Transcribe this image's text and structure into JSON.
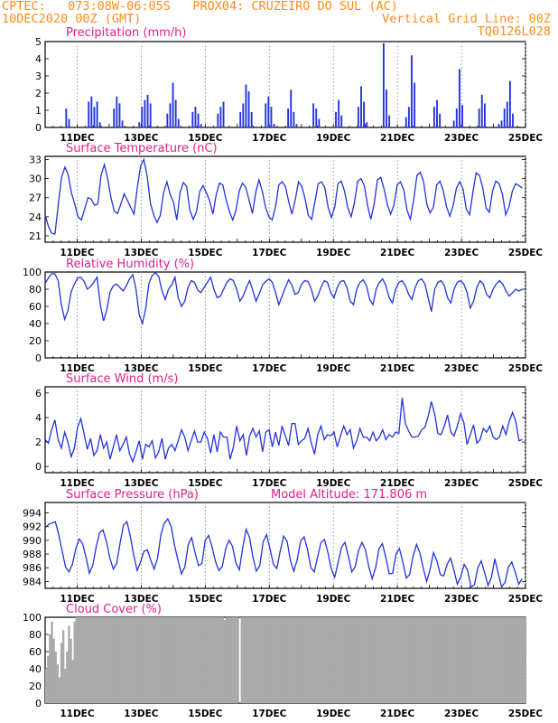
{
  "header": {
    "line1_left": "CPTEC:   073:08W-06:05S   PROX04: CRUZEIRO DO SUL (AC)",
    "line2_left": "10DEC2020 00Z (GMT)",
    "line2_right": "Vertical Grid Line: 00Z",
    "line3_right": "TQ0126L028"
  },
  "colors": {
    "header": "#ff8c1a",
    "title": "#e0208a",
    "series": "#2233dd",
    "cloud": "#aaaaaa",
    "grid": "#999999"
  },
  "x_tick_labels": [
    "11DEC",
    "13DEC",
    "15DEC",
    "17DEC",
    "19DEC",
    "21DEC",
    "23DEC",
    "25DEC"
  ],
  "chart_data": [
    {
      "type": "bar",
      "title": "Precipitation (mm/h)",
      "ylim": [
        0,
        5
      ],
      "yticks": [
        0,
        1,
        2,
        3,
        4,
        5
      ],
      "day_start": 10,
      "day_end": 25,
      "points_per_day": 8,
      "values": [
        0,
        0,
        0,
        0,
        0,
        0,
        0,
        1.1,
        0.5,
        0,
        0,
        0,
        0,
        0,
        0,
        1.5,
        1.8,
        1.2,
        1.5,
        0.3,
        0,
        0,
        0,
        0,
        1.1,
        1.8,
        1.4,
        0.4,
        0,
        0,
        0,
        0,
        0,
        0.3,
        1.2,
        1.6,
        1.9,
        1.4,
        0,
        0,
        0,
        0,
        0,
        0.8,
        1.4,
        2.6,
        1.6,
        0.5,
        0,
        0,
        0,
        0,
        0.9,
        1.2,
        0.8,
        0.2,
        0,
        0,
        0,
        0,
        0,
        0.8,
        1.2,
        1.5,
        0,
        0,
        0,
        0,
        0,
        0.9,
        1.4,
        2.5,
        2.1,
        0.9,
        0,
        0,
        0,
        0,
        1.4,
        1.8,
        1.2,
        0.2,
        0,
        0,
        0,
        0,
        1.1,
        2.2,
        0.9,
        0.2,
        0,
        0,
        0,
        0,
        0,
        1.4,
        1.1,
        0.5,
        0,
        0,
        0,
        0,
        0,
        0.9,
        1.6,
        0.7,
        0,
        0,
        0,
        0,
        0,
        1.2,
        2.4,
        1.5,
        0.3,
        0,
        0,
        0,
        0,
        0,
        4.9,
        2.2,
        0.7,
        0,
        0,
        0,
        0,
        0,
        0.6,
        1.2,
        4.2,
        2.6,
        0,
        0,
        0,
        0,
        0,
        0,
        1.2,
        1.6,
        0.8,
        0,
        0,
        0,
        0,
        0.4,
        1.1,
        3.4,
        1.3,
        0,
        0,
        0,
        0,
        0,
        1.1,
        1.9,
        1.4,
        0,
        0,
        0,
        0,
        0.2,
        0.4,
        1.1,
        1.5,
        2.7,
        0.8,
        0,
        0,
        0,
        0
      ]
    },
    {
      "type": "line",
      "title": "Surface Temperature (nC)",
      "ylim": [
        20,
        33.5
      ],
      "yticks": [
        21,
        24,
        27,
        30,
        33
      ],
      "day_start": 10,
      "day_end": 25,
      "points_per_day": 8,
      "values": [
        24.3,
        22.5,
        21.4,
        21.3,
        26.0,
        30.2,
        31.8,
        30.6,
        27.7,
        26.0,
        24.0,
        23.5,
        25.2,
        27.0,
        26.8,
        25.8,
        26.0,
        30.5,
        32.2,
        30.0,
        27.0,
        24.9,
        24.5,
        26.0,
        27.6,
        26.6,
        25.5,
        24.4,
        28.5,
        32.0,
        33.0,
        30.4,
        26.1,
        24.3,
        23.1,
        24.2,
        27.8,
        29.5,
        27.5,
        26.3,
        23.5,
        27.8,
        29.4,
        28.8,
        25.0,
        23.6,
        24.8,
        28.0,
        28.9,
        27.8,
        26.5,
        24.4,
        27.5,
        29.3,
        29.0,
        26.7,
        24.8,
        23.5,
        25.0,
        28.1,
        29.3,
        28.6,
        26.6,
        24.5,
        27.8,
        29.8,
        28.0,
        25.5,
        24.0,
        23.5,
        25.5,
        29.0,
        29.5,
        28.8,
        26.5,
        24.4,
        26.6,
        29.5,
        28.8,
        26.8,
        24.2,
        23.6,
        26.4,
        29.2,
        29.5,
        28.6,
        25.5,
        23.9,
        25.5,
        29.2,
        29.6,
        28.0,
        25.4,
        24.0,
        26.2,
        29.6,
        30.0,
        28.9,
        25.8,
        23.6,
        26.0,
        29.8,
        30.2,
        28.4,
        25.9,
        24.4,
        25.8,
        29.0,
        29.5,
        28.2,
        25.0,
        23.6,
        26.6,
        30.5,
        31.0,
        29.6,
        26.0,
        24.6,
        25.5,
        29.0,
        29.6,
        28.1,
        25.6,
        24.1,
        25.7,
        28.5,
        29.5,
        28.4,
        25.2,
        24.3,
        27.8,
        30.9,
        30.5,
        28.6,
        25.4,
        24.7,
        28.1,
        29.6,
        29.2,
        27.5,
        24.3,
        25.6,
        28.0,
        29.2,
        28.9,
        28.5
      ]
    },
    {
      "type": "line",
      "title": "Relative Humidity (%)",
      "ylim": [
        0,
        100
      ],
      "yticks": [
        0,
        20,
        40,
        60,
        80,
        100
      ],
      "day_start": 10,
      "day_end": 25,
      "points_per_day": 8,
      "values": [
        87,
        93,
        98,
        98,
        90,
        62,
        45,
        55,
        77,
        86,
        93,
        94,
        89,
        80,
        83,
        88,
        94,
        62,
        43,
        56,
        77,
        84,
        86,
        82,
        78,
        84,
        92,
        97,
        80,
        50,
        40,
        58,
        87,
        96,
        99,
        95,
        78,
        68,
        80,
        85,
        94,
        70,
        60,
        66,
        82,
        90,
        88,
        79,
        76,
        82,
        88,
        94,
        80,
        70,
        72,
        80,
        88,
        92,
        90,
        80,
        66,
        72,
        82,
        90,
        78,
        66,
        75,
        85,
        89,
        92,
        88,
        76,
        62,
        72,
        82,
        91,
        85,
        74,
        76,
        86,
        90,
        89,
        80,
        66,
        72,
        82,
        90,
        88,
        76,
        70,
        82,
        89,
        90,
        82,
        66,
        62,
        80,
        88,
        91,
        84,
        68,
        62,
        80,
        88,
        92,
        84,
        70,
        64,
        80,
        88,
        90,
        84,
        74,
        68,
        82,
        90,
        92,
        86,
        70,
        54,
        80,
        88,
        90,
        84,
        70,
        64,
        80,
        88,
        90,
        86,
        76,
        58,
        66,
        82,
        90,
        86,
        74,
        70,
        80,
        86,
        90,
        86,
        78,
        72,
        76,
        80,
        78,
        80
      ]
    },
    {
      "type": "line",
      "title": "Surface Wind (m/s)",
      "ylim": [
        -0.5,
        6.5
      ],
      "yticks": [
        0,
        2,
        4,
        6
      ],
      "day_start": 10,
      "day_end": 25,
      "points_per_day": 8,
      "values": [
        2.2,
        1.9,
        3.0,
        3.8,
        2.2,
        1.5,
        2.8,
        2.0,
        0.8,
        1.5,
        3.2,
        3.9,
        2.7,
        1.4,
        2.3,
        0.9,
        1.3,
        2.6,
        1.5,
        2.0,
        0.6,
        1.6,
        2.6,
        1.3,
        1.8,
        2.4,
        1.0,
        0.4,
        1.2,
        2.1,
        0.6,
        1.8,
        1.6,
        2.1,
        0.7,
        1.2,
        2.3,
        0.6,
        1.5,
        1.8,
        1.3,
        2.1,
        3.0,
        2.4,
        1.3,
        2.1,
        2.9,
        2.0,
        2.0,
        2.8,
        2.3,
        1.1,
        2.6,
        1.2,
        2.8,
        2.4,
        2.4,
        0.6,
        1.6,
        3.3,
        2.1,
        2.6,
        0.9,
        2.5,
        3.1,
        2.4,
        2.9,
        1.2,
        2.8,
        3.0,
        1.6,
        2.8,
        1.7,
        3.3,
        2.5,
        1.7,
        3.5,
        3.5,
        1.8,
        2.1,
        2.3,
        3.1,
        1.9,
        1.0,
        2.6,
        3.3,
        2.2,
        2.6,
        2.5,
        2.8,
        1.6,
        2.5,
        3.3,
        2.6,
        3.0,
        1.5,
        2.1,
        3.1,
        2.4,
        2.4,
        2.1,
        2.8,
        2.1,
        2.4,
        3.0,
        2.2,
        2.6,
        2.4,
        2.8,
        2.7,
        5.6,
        3.5,
        2.9,
        2.4,
        2.4,
        2.5,
        3.0,
        3.2,
        4.1,
        5.3,
        4.3,
        2.7,
        2.6,
        3.3,
        4.2,
        2.8,
        2.5,
        3.3,
        4.3,
        3.6,
        1.8,
        2.6,
        3.4,
        1.9,
        2.2,
        3.1,
        2.8,
        3.3,
        2.4,
        2.2,
        2.4,
        3.3,
        2.6,
        3.7,
        4.4,
        3.7,
        2.1,
        2.2
      ]
    },
    {
      "type": "line",
      "title": "Surface Pressure (hPa)",
      "subtitle": "Model Altitude: 171.806 m",
      "ylim": [
        983,
        995.5
      ],
      "yticks": [
        984,
        986,
        988,
        990,
        992,
        994
      ],
      "day_start": 10,
      "day_end": 25,
      "points_per_day": 8,
      "values": [
        991.8,
        992.3,
        992.5,
        992.7,
        990.8,
        988.4,
        986.1,
        985.4,
        986.5,
        988.8,
        990.2,
        989.5,
        987.5,
        985.2,
        986.4,
        989.1,
        991.1,
        991.5,
        989.8,
        987.4,
        985.8,
        986.6,
        989.6,
        992.2,
        992.7,
        990.6,
        987.8,
        985.6,
        986.8,
        988.4,
        988.6,
        987.1,
        985.8,
        987.4,
        990.9,
        992.5,
        993.1,
        992.0,
        989.2,
        987.1,
        985.1,
        986.1,
        989.4,
        990.4,
        988.2,
        986.3,
        986.6,
        990.0,
        990.7,
        989.0,
        986.9,
        985.6,
        986.2,
        988.8,
        990.0,
        989.1,
        986.7,
        985.7,
        988.9,
        991.6,
        990.4,
        987.5,
        985.5,
        986.3,
        989.8,
        990.8,
        988.8,
        986.5,
        985.9,
        988.4,
        990.6,
        989.9,
        987.0,
        985.5,
        987.2,
        989.9,
        990.5,
        988.7,
        986.0,
        985.4,
        987.6,
        989.7,
        990.1,
        988.2,
        985.8,
        984.6,
        986.8,
        989.0,
        989.7,
        987.7,
        985.4,
        986.1,
        988.5,
        989.7,
        988.6,
        986.2,
        984.4,
        986.0,
        988.8,
        989.5,
        987.5,
        985.1,
        985.2,
        988.0,
        988.8,
        986.8,
        984.5,
        985.0,
        987.7,
        989.4,
        988.2,
        985.9,
        984.0,
        985.8,
        988.2,
        987.0,
        985.0,
        984.8,
        986.5,
        987.4,
        985.6,
        983.6,
        984.7,
        986.5,
        985.6,
        983.2,
        983.5,
        986.0,
        987.0,
        985.3,
        983.4,
        984.6,
        987.3,
        985.2,
        983.2,
        983.9,
        986.1,
        986.8,
        985.3,
        983.6,
        984.4
      ]
    },
    {
      "type": "area",
      "title": "Cloud Cover (%)",
      "ylim": [
        0,
        100
      ],
      "yticks": [
        0,
        20,
        40,
        60,
        80,
        100
      ],
      "day_start": 10,
      "day_end": 25,
      "points_per_day": 16,
      "values": [
        40,
        55,
        80,
        95,
        75,
        60,
        45,
        30,
        70,
        85,
        40,
        60,
        90,
        75,
        50,
        95,
        100,
        100,
        100,
        100,
        100,
        100,
        100,
        100,
        100,
        100,
        100,
        100,
        100,
        100,
        100,
        100,
        100,
        100,
        100,
        100,
        100,
        100,
        100,
        100,
        100,
        100,
        100,
        100,
        100,
        100,
        100,
        100,
        100,
        100,
        100,
        100,
        100,
        100,
        100,
        100,
        100,
        100,
        100,
        100,
        100,
        100,
        100,
        100,
        100,
        100,
        100,
        100,
        100,
        100,
        100,
        100,
        100,
        100,
        100,
        100,
        100,
        100,
        100,
        100,
        100,
        100,
        100,
        100,
        100,
        100,
        100,
        100,
        100,
        100,
        100,
        100,
        100,
        100,
        97,
        100,
        100,
        100,
        100,
        100,
        100,
        100,
        0,
        100,
        100,
        100,
        100,
        100,
        100,
        100,
        100,
        100,
        100,
        100,
        100,
        100,
        100,
        100,
        100,
        100,
        100,
        100,
        100,
        100,
        100,
        100,
        100,
        100,
        100,
        100,
        100,
        100,
        100,
        100,
        100,
        100,
        100,
        100,
        100,
        100,
        100,
        100,
        100,
        100,
        100,
        100,
        100,
        100,
        100,
        100,
        100,
        100,
        100,
        100,
        100,
        100,
        100,
        100,
        100,
        100,
        100,
        100,
        100,
        100,
        100,
        100,
        100,
        100,
        100,
        100,
        100,
        100,
        100,
        100,
        100,
        100,
        100,
        100,
        100,
        100,
        100,
        100,
        100,
        100,
        100,
        100,
        100,
        100,
        100,
        100,
        100,
        100,
        100,
        100,
        100,
        100,
        100,
        100,
        100,
        100,
        100,
        100,
        100,
        100,
        100,
        100,
        100,
        100,
        100,
        100,
        100,
        100,
        100,
        100,
        100,
        100,
        100,
        100,
        100,
        100,
        100,
        100,
        100,
        100,
        100,
        100,
        100,
        100,
        100,
        100,
        100,
        100,
        100,
        100,
        100,
        100,
        100,
        100,
        100,
        100,
        100,
        100,
        100,
        100,
        100,
        100,
        100,
        100,
        100,
        100,
        100,
        100,
        100
      ]
    }
  ]
}
